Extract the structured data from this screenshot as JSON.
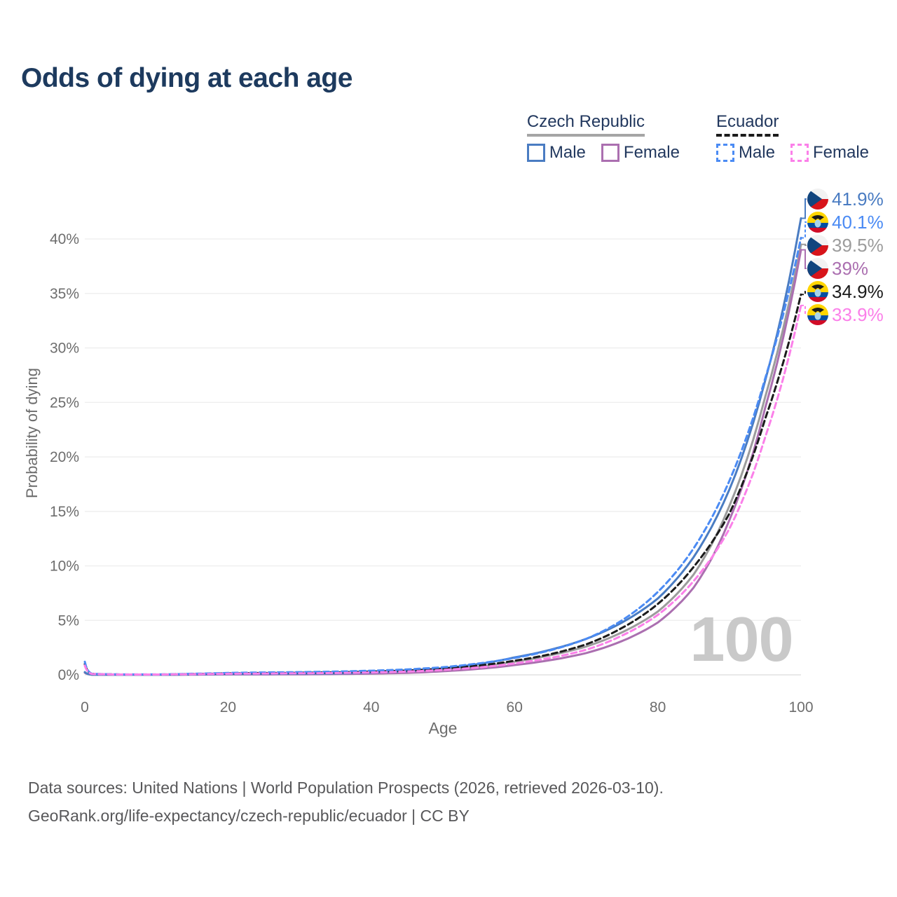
{
  "header": {
    "title": "Odds of dying at each age"
  },
  "legend": {
    "groups": [
      {
        "country": "Czech Republic",
        "underline_style": "solid",
        "underline_color": "#a5a5a5",
        "items": [
          {
            "label": "Male",
            "color": "#4a7cc2",
            "dash": false
          },
          {
            "label": "Female",
            "color": "#ab6fb0",
            "dash": false
          }
        ]
      },
      {
        "country": "Ecuador",
        "underline_style": "dashed",
        "underline_color": "#1b1b1b",
        "items": [
          {
            "label": "Male",
            "color": "#4b8bf4",
            "dash": true
          },
          {
            "label": "Female",
            "color": "#fb80e9",
            "dash": true
          }
        ]
      }
    ]
  },
  "chart_data": {
    "type": "line",
    "title": "Odds of dying at each age",
    "xlabel": "Age",
    "ylabel": "Probability of dying",
    "xlim": [
      0,
      100
    ],
    "ylim": [
      0,
      43
    ],
    "grid": true,
    "xticks": [
      0,
      20,
      40,
      60,
      80,
      100
    ],
    "yticks": [
      0,
      5,
      10,
      15,
      20,
      25,
      30,
      35,
      40
    ],
    "ytick_suffix": "%",
    "watermark": "100",
    "x": [
      0,
      1,
      5,
      10,
      15,
      20,
      25,
      30,
      35,
      40,
      45,
      50,
      55,
      60,
      65,
      70,
      75,
      80,
      85,
      90,
      95,
      100
    ],
    "series": [
      {
        "name": "Czech Republic Male",
        "flag": "cz",
        "color": "#4a7cc2",
        "dash": false,
        "end_label": "41.9%",
        "values": [
          0.25,
          0.02,
          0.01,
          0.01,
          0.04,
          0.08,
          0.09,
          0.1,
          0.13,
          0.2,
          0.33,
          0.6,
          1.0,
          1.6,
          2.3,
          3.3,
          4.8,
          7.0,
          10.8,
          17.0,
          27.0,
          41.9
        ]
      },
      {
        "name": "Ecuador Male",
        "flag": "ec",
        "color": "#4b8bf4",
        "dash": true,
        "end_label": "40.1%",
        "values": [
          1.2,
          0.1,
          0.04,
          0.04,
          0.1,
          0.18,
          0.22,
          0.25,
          0.3,
          0.38,
          0.5,
          0.7,
          1.05,
          1.55,
          2.25,
          3.3,
          5.0,
          7.6,
          11.6,
          17.8,
          27.2,
          40.1
        ]
      },
      {
        "name": "Czech Republic Total",
        "flag": "cz",
        "color": "#9c9c9c",
        "dash": false,
        "end_label": "39.5%",
        "values": [
          0.22,
          0.02,
          0.01,
          0.01,
          0.03,
          0.06,
          0.07,
          0.08,
          0.1,
          0.15,
          0.25,
          0.45,
          0.75,
          1.2,
          1.8,
          2.6,
          3.9,
          5.8,
          9.2,
          15.5,
          25.5,
          39.5
        ]
      },
      {
        "name": "Czech Republic Female",
        "flag": "cz",
        "color": "#ab6fb0",
        "dash": false,
        "end_label": "39%",
        "values": [
          0.2,
          0.02,
          0.01,
          0.01,
          0.02,
          0.04,
          0.04,
          0.05,
          0.07,
          0.11,
          0.18,
          0.33,
          0.55,
          0.9,
          1.35,
          2.0,
          3.1,
          4.8,
          8.0,
          14.2,
          24.5,
          39.0
        ]
      },
      {
        "name": "Ecuador Total",
        "flag": "ec",
        "color": "#1b1b1b",
        "dash": true,
        "end_label": "34.9%",
        "values": [
          1.0,
          0.09,
          0.03,
          0.03,
          0.08,
          0.14,
          0.17,
          0.19,
          0.23,
          0.3,
          0.4,
          0.57,
          0.85,
          1.3,
          1.9,
          2.8,
          4.3,
          6.5,
          9.9,
          14.8,
          23.5,
          34.9
        ]
      },
      {
        "name": "Ecuador Female",
        "flag": "ec",
        "color": "#fb80e9",
        "dash": true,
        "end_label": "33.9%",
        "values": [
          0.85,
          0.08,
          0.03,
          0.03,
          0.06,
          0.1,
          0.12,
          0.14,
          0.17,
          0.22,
          0.3,
          0.45,
          0.68,
          1.05,
          1.55,
          2.3,
          3.6,
          5.5,
          8.6,
          13.4,
          21.8,
          33.9
        ]
      }
    ]
  },
  "footer": {
    "line1": "Data sources: United Nations | World Population Prospects (2026, retrieved 2026-03-10).",
    "line2": "GeoRank.org/life-expectancy/czech-republic/ecuador | CC BY"
  }
}
